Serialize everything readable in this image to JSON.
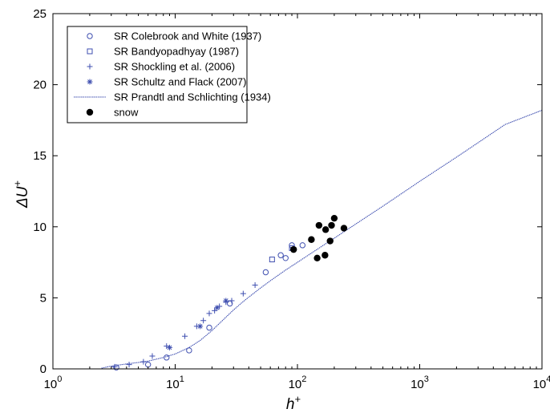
{
  "chart_data": {
    "type": "scatter",
    "title": "",
    "xlabel": "h",
    "xlabel_sup": "+",
    "ylabel": "ΔU",
    "ylabel_sup": "+",
    "xscale": "log",
    "xlim": [
      1,
      10000
    ],
    "ylim": [
      0,
      25
    ],
    "x_ticks": [
      1,
      10,
      100,
      1000,
      10000
    ],
    "y_ticks": [
      0,
      5,
      10,
      15,
      20,
      25
    ],
    "y_tick_labels": [
      "0",
      "5",
      "10",
      "15",
      "20",
      "25"
    ],
    "grid": false,
    "legend_position": "top-left",
    "colors": {
      "series": "#3f4fb0",
      "snow": "#000000"
    },
    "series": [
      {
        "name": "SR Colebrook and White (1937)",
        "marker": "circle-open",
        "x": [
          3.3,
          6,
          8.5,
          13,
          19,
          28,
          55,
          73,
          80,
          90,
          110
        ],
        "y": [
          0.1,
          0.3,
          0.8,
          1.3,
          2.9,
          4.6,
          6.8,
          8.0,
          7.8,
          8.7,
          8.7
        ]
      },
      {
        "name": "SR Bandyopadhyay (1987)",
        "marker": "square-open",
        "x": [
          62,
          90
        ],
        "y": [
          7.7,
          8.5
        ]
      },
      {
        "name": "SR Shockling et al. (2006)",
        "marker": "plus",
        "x": [
          3.2,
          4.2,
          5.5,
          6.5,
          8.5,
          12,
          15,
          17,
          19,
          21,
          23,
          26,
          29,
          36,
          45
        ],
        "y": [
          0.15,
          0.3,
          0.5,
          0.9,
          1.6,
          2.3,
          3.0,
          3.4,
          3.9,
          4.1,
          4.4,
          4.7,
          4.8,
          5.3,
          5.9
        ]
      },
      {
        "name": "SR Schultz and Flack (2007)",
        "marker": "asterisk",
        "x": [
          9,
          16,
          22,
          26
        ],
        "y": [
          1.5,
          3.0,
          4.3,
          4.8
        ]
      },
      {
        "name": "SR Prandtl and Schlichting (1934)",
        "marker": "line",
        "x": [
          2.5,
          3,
          4,
          5,
          6,
          8,
          10,
          13,
          16,
          20,
          25,
          30,
          35,
          40,
          50,
          60,
          80,
          100,
          150,
          200,
          300,
          500,
          1000,
          2000,
          5000,
          10000
        ],
        "y": [
          0.05,
          0.2,
          0.35,
          0.45,
          0.55,
          0.8,
          1.05,
          1.5,
          2.0,
          2.7,
          3.5,
          4.15,
          4.65,
          5.05,
          5.7,
          6.2,
          6.95,
          7.5,
          8.5,
          9.2,
          10.2,
          11.45,
          13.2,
          14.9,
          17.2,
          18.2
        ]
      },
      {
        "name": "snow",
        "marker": "circle-filled",
        "x": [
          93,
          130,
          145,
          150,
          168,
          170,
          185,
          190,
          200,
          240
        ],
        "y": [
          8.4,
          9.1,
          7.8,
          10.1,
          8.0,
          9.8,
          9.0,
          10.1,
          10.6,
          9.9
        ]
      }
    ]
  }
}
